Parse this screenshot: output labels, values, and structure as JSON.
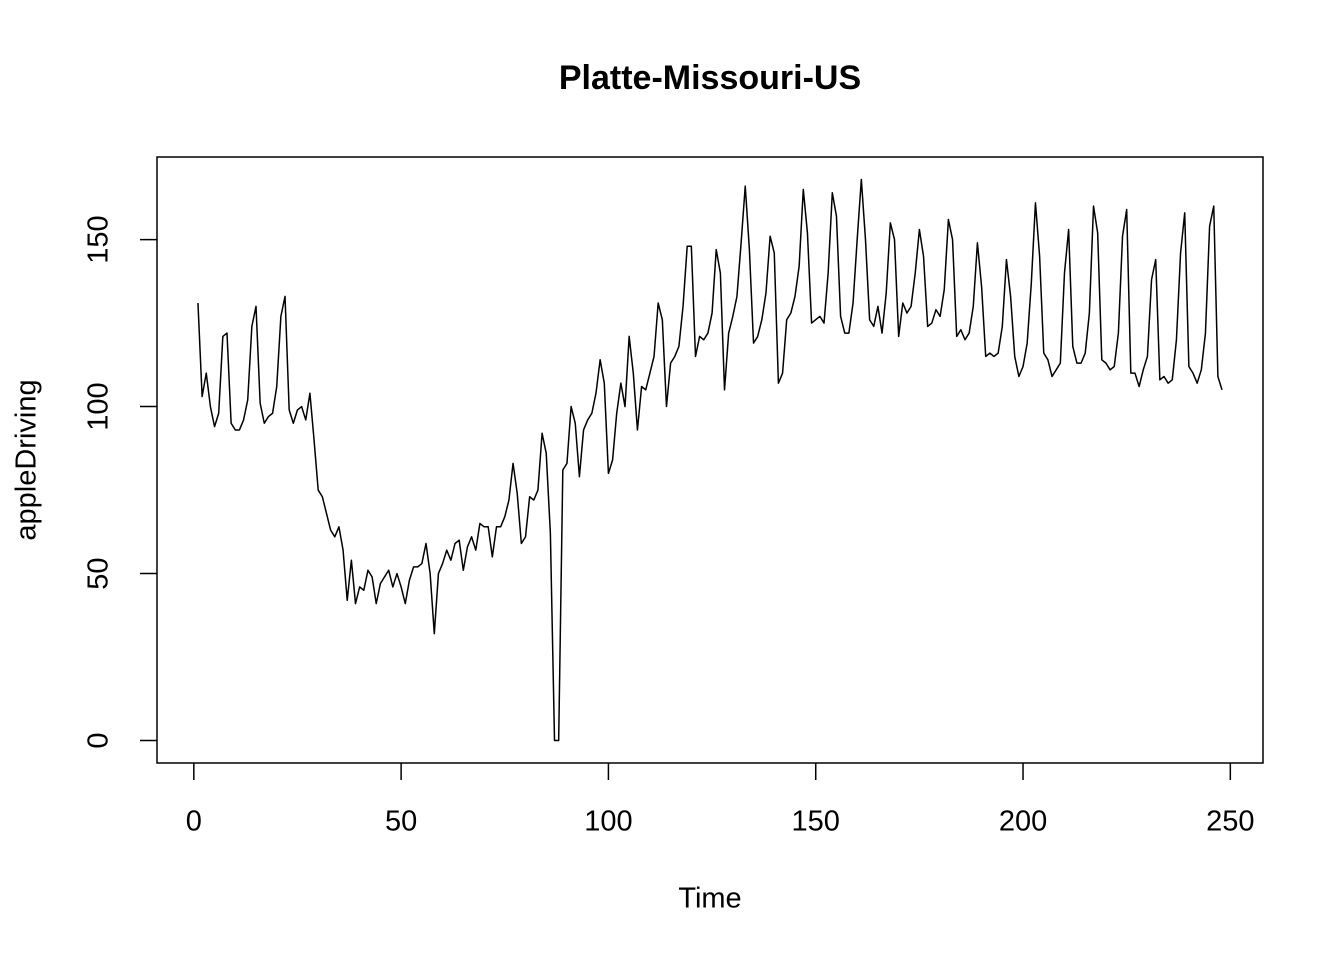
{
  "chart_data": {
    "type": "line",
    "title": "Platte-Missouri-US",
    "xlabel": "Time",
    "ylabel": "appleDriving",
    "color": "#000000",
    "xlim": [
      -8.88,
      257.88
    ],
    "ylim": [
      -6.72,
      174.72
    ],
    "xticks": [
      0,
      50,
      100,
      150,
      200,
      250
    ],
    "yticks": [
      0,
      50,
      100,
      150
    ],
    "x": [
      1,
      2,
      3,
      4,
      5,
      6,
      7,
      8,
      9,
      10,
      11,
      12,
      13,
      14,
      15,
      16,
      17,
      18,
      19,
      20,
      21,
      22,
      23,
      24,
      25,
      26,
      27,
      28,
      29,
      30,
      31,
      32,
      33,
      34,
      35,
      36,
      37,
      38,
      39,
      40,
      41,
      42,
      43,
      44,
      45,
      46,
      47,
      48,
      49,
      50,
      51,
      52,
      53,
      54,
      55,
      56,
      57,
      58,
      59,
      60,
      61,
      62,
      63,
      64,
      65,
      66,
      67,
      68,
      69,
      70,
      71,
      72,
      73,
      74,
      75,
      76,
      77,
      78,
      79,
      80,
      81,
      82,
      83,
      84,
      85,
      86,
      87,
      88,
      89,
      90,
      91,
      92,
      93,
      94,
      95,
      96,
      97,
      98,
      99,
      100,
      101,
      102,
      103,
      104,
      105,
      106,
      107,
      108,
      109,
      110,
      111,
      112,
      113,
      114,
      115,
      116,
      117,
      118,
      119,
      120,
      121,
      122,
      123,
      124,
      125,
      126,
      127,
      128,
      129,
      130,
      131,
      132,
      133,
      134,
      135,
      136,
      137,
      138,
      139,
      140,
      141,
      142,
      143,
      144,
      145,
      146,
      147,
      148,
      149,
      150,
      151,
      152,
      153,
      154,
      155,
      156,
      157,
      158,
      159,
      160,
      161,
      162,
      163,
      164,
      165,
      166,
      167,
      168,
      169,
      170,
      171,
      172,
      173,
      174,
      175,
      176,
      177,
      178,
      179,
      180,
      181,
      182,
      183,
      184,
      185,
      186,
      187,
      188,
      189,
      190,
      191,
      192,
      193,
      194,
      195,
      196,
      197,
      198,
      199,
      200,
      201,
      202,
      203,
      204,
      205,
      206,
      207,
      208,
      209,
      210,
      211,
      212,
      213,
      214,
      215,
      216,
      217,
      218,
      219,
      220,
      221,
      222,
      223,
      224,
      225,
      226,
      227,
      228,
      229,
      230,
      231,
      232,
      233,
      234,
      235,
      236,
      237,
      238,
      239,
      240,
      241,
      242,
      243,
      244,
      245,
      246,
      247,
      248
    ],
    "values": [
      131,
      103,
      110,
      100,
      94,
      98,
      121,
      122,
      95,
      93,
      93,
      96,
      102,
      124,
      130,
      101,
      95,
      97,
      98,
      106,
      127,
      133,
      99,
      95,
      99,
      100,
      96,
      104,
      90,
      75,
      73,
      68,
      63,
      61,
      64,
      57,
      42,
      54,
      41,
      46,
      45,
      51,
      49,
      41,
      47,
      49,
      51,
      46,
      50,
      46,
      41,
      48,
      52,
      52,
      53,
      59,
      50,
      32,
      50,
      53,
      57,
      54,
      59,
      60,
      51,
      58,
      61,
      57,
      65,
      64,
      64,
      55,
      64,
      64,
      67,
      72,
      83,
      74,
      59,
      61,
      73,
      72,
      75,
      92,
      86,
      62,
      0,
      0,
      81,
      83,
      100,
      95,
      79,
      93,
      96,
      98,
      104,
      114,
      107,
      80,
      84,
      98,
      107,
      100,
      121,
      110,
      93,
      106,
      105,
      110,
      115,
      131,
      126,
      100,
      113,
      115,
      118,
      130,
      148,
      148,
      115,
      121,
      120,
      122,
      128,
      147,
      140,
      105,
      122,
      127,
      133,
      149,
      166,
      147,
      119,
      121,
      126,
      134,
      151,
      146,
      107,
      110,
      126,
      128,
      133,
      142,
      165,
      152,
      125,
      126,
      127,
      125,
      140,
      164,
      157,
      127,
      122,
      122,
      131,
      150,
      168,
      150,
      126,
      124,
      130,
      122,
      134,
      155,
      150,
      121,
      131,
      128,
      130,
      140,
      153,
      145,
      124,
      125,
      129,
      127,
      135,
      156,
      150,
      121,
      123,
      120,
      122,
      130,
      149,
      136,
      115,
      116,
      115,
      116,
      124,
      144,
      133,
      115,
      109,
      112,
      119,
      137,
      161,
      145,
      116,
      114,
      109,
      111,
      113,
      140,
      153,
      118,
      113,
      113,
      116,
      128,
      160,
      152,
      114,
      113,
      111,
      112,
      122,
      151,
      159,
      110,
      110,
      106,
      111,
      115,
      138,
      144,
      108,
      109,
      107,
      108,
      120,
      146,
      158,
      112,
      110,
      107,
      111,
      122,
      154,
      160,
      109,
      105
    ]
  }
}
